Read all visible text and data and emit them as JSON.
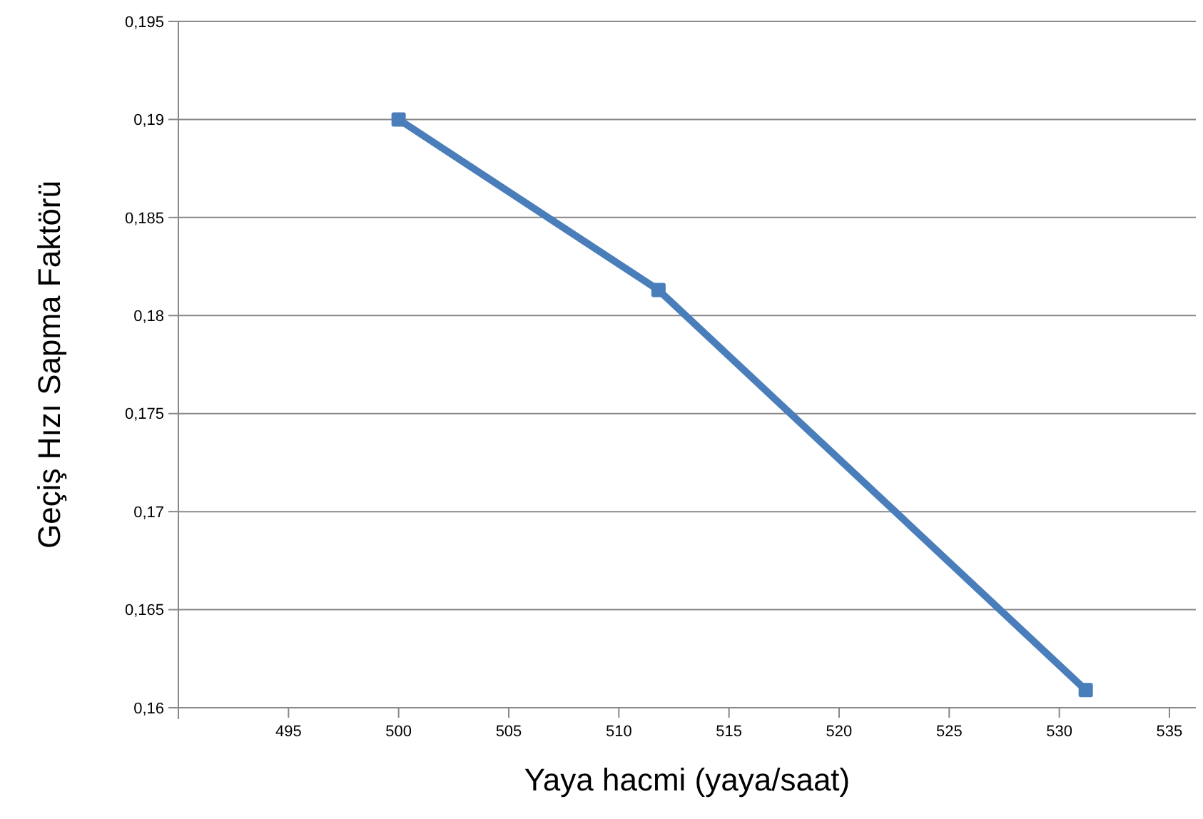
{
  "chart_data": {
    "type": "line",
    "xlabel": "Yaya hacmi (yaya/saat)",
    "ylabel": "Geçiş Hızı Sapma Faktörü",
    "x": [
      500,
      511.8,
      531.2
    ],
    "series": [
      {
        "color": "#4a7ebb",
        "values": [
          0.19,
          0.1813,
          0.1609
        ]
      }
    ],
    "xlim": [
      490,
      536.2
    ],
    "xticks": [
      495,
      500,
      505,
      510,
      515,
      520,
      525,
      530,
      535
    ],
    "ylim": [
      0.16,
      0.195
    ],
    "yticks": [
      {
        "value": 0.16,
        "label": "0,16"
      },
      {
        "value": 0.165,
        "label": "0,165"
      },
      {
        "value": 0.17,
        "label": "0,17"
      },
      {
        "value": 0.175,
        "label": "0,175"
      },
      {
        "value": 0.18,
        "label": "0,18"
      },
      {
        "value": 0.185,
        "label": "0,185"
      },
      {
        "value": 0.19,
        "label": "0,19"
      },
      {
        "value": 0.195,
        "label": "0,195"
      }
    ],
    "grid": "y",
    "marker": "square",
    "line_style": "solid"
  }
}
